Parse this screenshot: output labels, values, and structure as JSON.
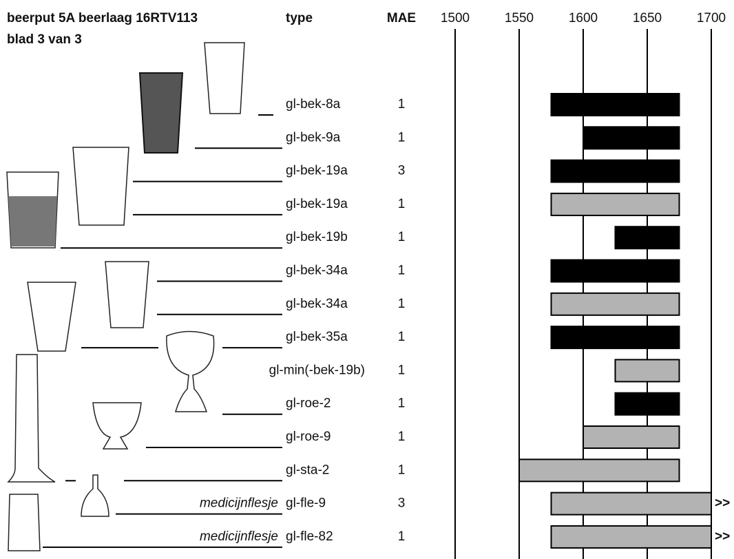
{
  "chart_data": {
    "type": "range",
    "title": "beerput 5A beerlaag 16RTV113",
    "subtitle": "blad 3 van 3",
    "type_header": "type",
    "count_header": "MAE",
    "xlim": [
      1500,
      1700
    ],
    "xticks": [
      1500,
      1550,
      1600,
      1650,
      1700
    ],
    "rows": [
      {
        "label": "gl-bek-8a",
        "count": 1,
        "start": 1575,
        "end": 1675,
        "color": "#000000"
      },
      {
        "label": "gl-bek-9a",
        "count": 1,
        "start": 1600,
        "end": 1675,
        "color": "#000000"
      },
      {
        "label": "gl-bek-19a",
        "count": 3,
        "start": 1575,
        "end": 1675,
        "color": "#000000"
      },
      {
        "label": "gl-bek-19a",
        "count": 1,
        "start": 1575,
        "end": 1675,
        "color": "#b3b3b3"
      },
      {
        "label": "gl-bek-19b",
        "count": 1,
        "start": 1625,
        "end": 1675,
        "color": "#000000"
      },
      {
        "label": "gl-bek-34a",
        "count": 1,
        "start": 1575,
        "end": 1675,
        "color": "#000000"
      },
      {
        "label": "gl-bek-34a",
        "count": 1,
        "start": 1575,
        "end": 1675,
        "color": "#b3b3b3"
      },
      {
        "label": "gl-bek-35a",
        "count": 1,
        "start": 1575,
        "end": 1675,
        "color": "#000000"
      },
      {
        "label": "gl-min(-bek-19b)",
        "count": 1,
        "start": 1625,
        "end": 1675,
        "color": "#b3b3b3"
      },
      {
        "label": "gl-roe-2",
        "count": 1,
        "start": 1625,
        "end": 1675,
        "color": "#000000"
      },
      {
        "label": "gl-roe-9",
        "count": 1,
        "start": 1600,
        "end": 1675,
        "color": "#b3b3b3"
      },
      {
        "label": "gl-sta-2",
        "count": 1,
        "start": 1550,
        "end": 1675,
        "color": "#b3b3b3"
      },
      {
        "label": "gl-fle-9",
        "note": "medicijnflesje",
        "count": 3,
        "start": 1575,
        "end": 1700,
        "color": "#b3b3b3",
        "arrow": ">>"
      },
      {
        "label": "gl-fle-82",
        "note": "medicijnflesje",
        "count": 1,
        "start": 1575,
        "end": 1700,
        "color": "#b3b3b3",
        "arrow": ">>"
      }
    ]
  }
}
